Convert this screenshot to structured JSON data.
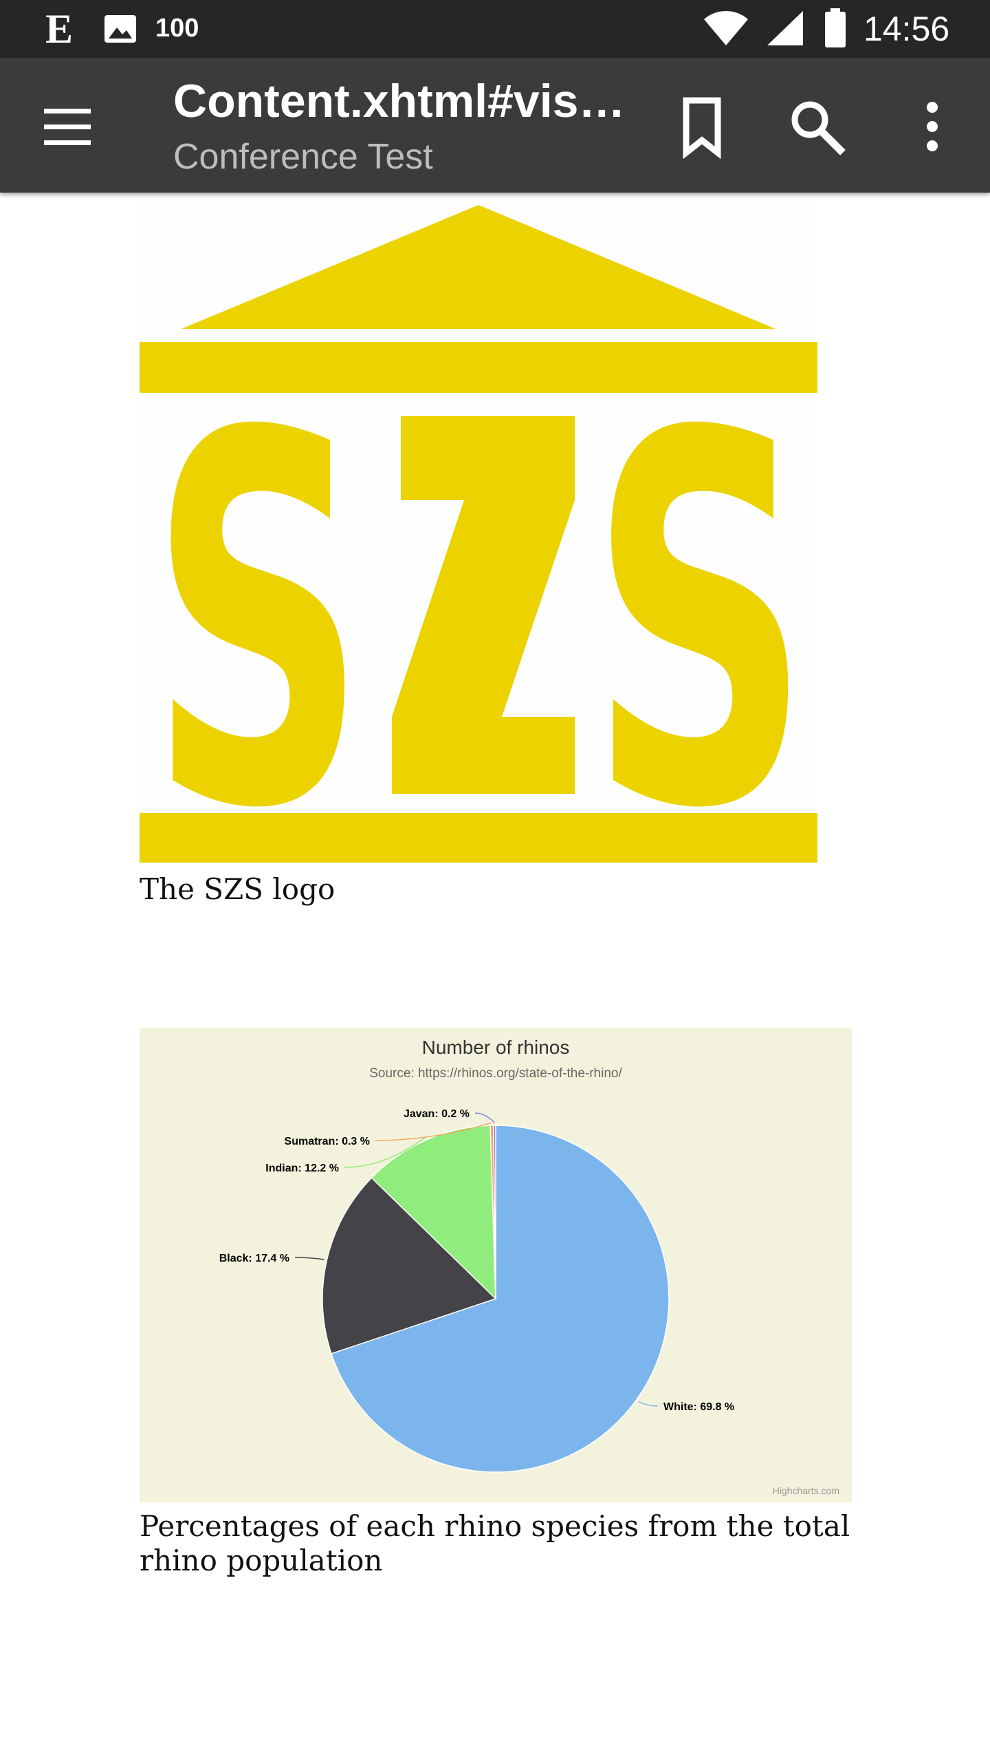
{
  "status_bar": {
    "app_icon_letter": "E",
    "battery_level_text": "100",
    "time": "14:56"
  },
  "toolbar": {
    "title": "Content.xhtml#visi…",
    "subtitle": "Conference Test",
    "icons": [
      "menu-icon",
      "bookmark-icon",
      "search-icon",
      "more-vert-icon"
    ]
  },
  "content": {
    "logo": {
      "text": "SZS",
      "color": "#ecd300"
    },
    "logo_caption": "The SZS logo",
    "chart_caption": "Percentages of each rhino species from the total rhino population"
  },
  "colors": {
    "status_bar_bg": "#262626",
    "toolbar_bg": "#3b3b3b",
    "chart_bg": "#f3f3dd"
  },
  "chart_data": {
    "type": "pie",
    "title": "Number of rhinos",
    "subtitle": "Source: https://rhinos.org/state-of-the-rhino/",
    "credits": "Highcharts.com",
    "series": [
      {
        "data": [
          {
            "name": "White",
            "value": 69.8,
            "label": "White: 69.8 %",
            "color": "#7cb5ec"
          },
          {
            "name": "Black",
            "value": 17.4,
            "label": "Black: 17.4 %",
            "color": "#434348"
          },
          {
            "name": "Indian",
            "value": 12.2,
            "label": "Indian: 12.2 %",
            "color": "#90ed7d"
          },
          {
            "name": "Sumatran",
            "value": 0.3,
            "label": "Sumatran: 0.3 %",
            "color": "#f7a35c"
          },
          {
            "name": "Javan",
            "value": 0.2,
            "label": "Javan: 0.2 %",
            "color": "#8085e9"
          }
        ]
      }
    ]
  }
}
